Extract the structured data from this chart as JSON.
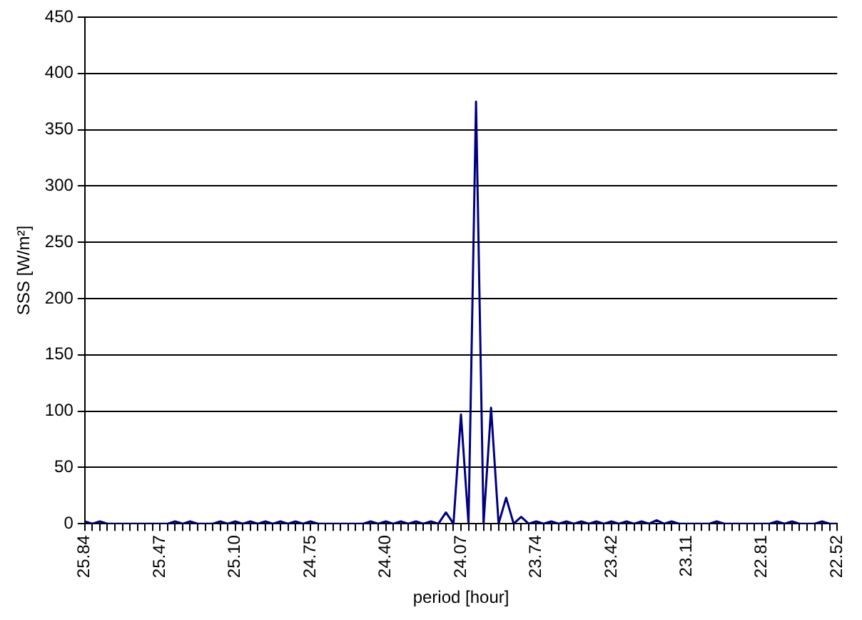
{
  "chart_data": {
    "type": "line",
    "xlabel": "period [hour]",
    "ylabel": "SSS [W/m²]",
    "categories": [
      "25.84",
      null,
      null,
      null,
      null,
      null,
      null,
      null,
      null,
      null,
      "25.47",
      null,
      null,
      null,
      null,
      null,
      null,
      null,
      null,
      null,
      "25.10",
      null,
      null,
      null,
      null,
      null,
      null,
      null,
      null,
      null,
      "24.75",
      null,
      null,
      null,
      null,
      null,
      null,
      null,
      null,
      null,
      "24.40",
      null,
      null,
      null,
      null,
      null,
      null,
      null,
      null,
      null,
      "24.07",
      null,
      null,
      null,
      null,
      null,
      null,
      null,
      null,
      null,
      "23.74",
      null,
      null,
      null,
      null,
      null,
      null,
      null,
      null,
      null,
      "23.42",
      null,
      null,
      null,
      null,
      null,
      null,
      null,
      null,
      null,
      "23.11",
      null,
      null,
      null,
      null,
      null,
      null,
      null,
      null,
      null,
      "22.81",
      null,
      null,
      null,
      null,
      null,
      null,
      null,
      null,
      null,
      "22.52"
    ],
    "series": [
      {
        "color": "#000080",
        "values": [
          2,
          0,
          2,
          0,
          0,
          0,
          0,
          0,
          0,
          0,
          0,
          0,
          2,
          0,
          2,
          0,
          0,
          0,
          2,
          0,
          2,
          0,
          2,
          0,
          2,
          0,
          2,
          0,
          2,
          0,
          2,
          0,
          0,
          0,
          0,
          0,
          0,
          0,
          2,
          0,
          2,
          0,
          2,
          0,
          2,
          0,
          2,
          0,
          10,
          0,
          97,
          0,
          375,
          0,
          103,
          0,
          23,
          0,
          6,
          0,
          2,
          0,
          2,
          0,
          2,
          0,
          2,
          0,
          2,
          0,
          2,
          0,
          2,
          0,
          2,
          0,
          3,
          0,
          2,
          0,
          0,
          0,
          0,
          0,
          2,
          0,
          0,
          0,
          0,
          0,
          0,
          0,
          2,
          0,
          2,
          0,
          0,
          0,
          2,
          0,
          0
        ]
      }
    ],
    "ylim": [
      0,
      450
    ],
    "yticks": [
      0,
      50,
      100,
      150,
      200,
      250,
      300,
      350,
      400,
      450
    ],
    "grid": "y",
    "legend": false,
    "marker": "none",
    "line_style": "solid"
  }
}
